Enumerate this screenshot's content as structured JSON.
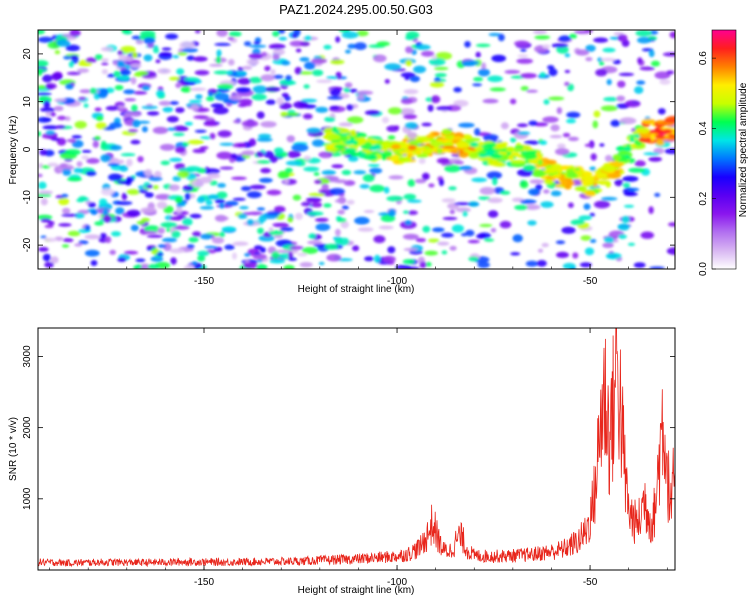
{
  "figure": {
    "title": "PAZ1.2024.295.00.50.G03"
  },
  "chart_data": [
    {
      "type": "heatmap",
      "xlabel": "Height of straight line (km)",
      "ylabel": "Frequency (Hz)",
      "xlim": [
        -193,
        -28
      ],
      "ylim": [
        -25,
        25
      ],
      "xticks": [
        -150,
        -100,
        -50
      ],
      "yticks": [
        -20,
        -10,
        0,
        10,
        20
      ],
      "colorbar": {
        "label": "Normalized spectral amplitude",
        "range": [
          0.0,
          0.68
        ],
        "ticks": [
          0.0,
          0.2,
          0.4,
          0.6
        ],
        "colormap": [
          "#ffffff",
          "#d8b6f2",
          "#b270f0",
          "#8a16ee",
          "#5a00f2",
          "#1800ff",
          "#0077ff",
          "#00e6e6",
          "#00ff50",
          "#c8ff00",
          "#ffee00",
          "#ff8000",
          "#ff1e1e",
          "#ff0090"
        ]
      },
      "ridge": {
        "x": [
          -115,
          -110,
          -105,
          -100,
          -96,
          -92,
          -88,
          -84,
          -80,
          -75,
          -70,
          -65,
          -60,
          -55,
          -50,
          -46,
          -43,
          -40,
          -38,
          -36,
          -34,
          -32,
          -30,
          -28
        ],
        "y": [
          2,
          1,
          0,
          -0.5,
          0,
          1,
          2,
          1,
          0,
          -1,
          -1,
          -2,
          -5,
          -6,
          -7,
          -6,
          -3,
          0,
          2,
          4,
          4,
          3.5,
          4,
          5
        ]
      }
    },
    {
      "type": "line",
      "xlabel": "Height of straight line (km)",
      "ylabel": "SNR (10 * v/v)",
      "xlim": [
        -193,
        -28
      ],
      "ylim": [
        0,
        3400
      ],
      "xticks": [
        -150,
        -100,
        -50
      ],
      "yticks": [
        1000,
        2000,
        3000
      ],
      "series": [
        {
          "color": "#e8261c",
          "x": [
            -193,
            -185,
            -175,
            -165,
            -155,
            -145,
            -135,
            -125,
            -120,
            -115,
            -110,
            -105,
            -100,
            -97,
            -94,
            -92,
            -91,
            -90,
            -89,
            -88,
            -86,
            -84,
            -83,
            -82,
            -80,
            -75,
            -70,
            -65,
            -60,
            -57,
            -55,
            -53,
            -51,
            -50,
            -49,
            -48,
            -47,
            -46,
            -45,
            -44,
            -43,
            -42,
            -41,
            -40,
            -39,
            -38,
            -37,
            -36,
            -35,
            -34,
            -33,
            -32,
            -31,
            -30,
            -29,
            -28
          ],
          "y": [
            120,
            110,
            120,
            115,
            125,
            120,
            130,
            135,
            150,
            160,
            170,
            190,
            210,
            250,
            350,
            550,
            700,
            600,
            420,
            300,
            300,
            520,
            480,
            320,
            220,
            210,
            220,
            240,
            280,
            320,
            380,
            450,
            600,
            800,
            1100,
            1700,
            2500,
            2700,
            2000,
            2500,
            3300,
            2400,
            1500,
            900,
            800,
            700,
            800,
            1100,
            900,
            700,
            1000,
            1800,
            2450,
            1500,
            900,
            1650
          ]
        }
      ]
    }
  ]
}
